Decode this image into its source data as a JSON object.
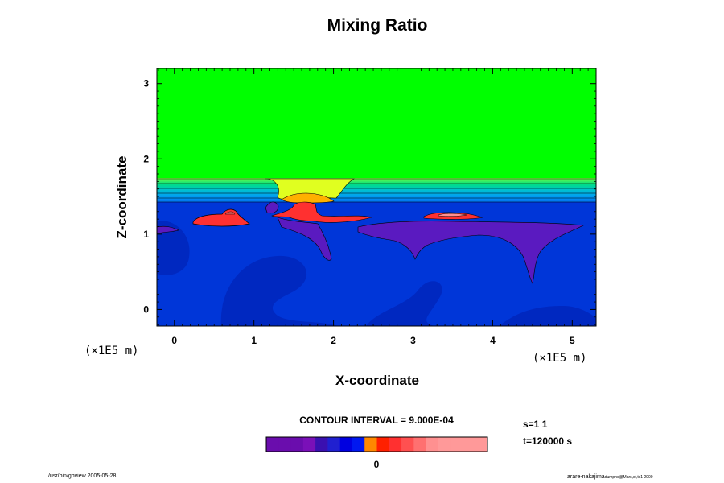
{
  "chart_data": {
    "type": "heatmap",
    "title": "Mixing Ratio",
    "xlabel": "X-coordinate",
    "ylabel": "Z-coordinate",
    "x_unit": "(×1E5 m)",
    "y_unit": "(×1E5 m)",
    "xlim": [
      -0.22,
      5.3
    ],
    "ylim": [
      -0.22,
      3.2
    ],
    "x_ticks": [
      0,
      1,
      2,
      3,
      4,
      5
    ],
    "y_ticks": [
      0,
      1,
      2,
      3
    ],
    "contour_interval": "CONTOUR INTERVAL = 9.000E-04",
    "colorbar": {
      "zero_label": "0",
      "colors": [
        "#6a0dad",
        "#6a0dad",
        "#6a0dad",
        "#7a10b8",
        "#3a10b0",
        "#2020d0",
        "#0000e0",
        "#0018f0",
        "#ff8800",
        "#ff2000",
        "#ff3030",
        "#ff5050",
        "#ff7070",
        "#ff9090",
        "#ff9999",
        "#ff9999",
        "#ff9999",
        "#ff9999"
      ]
    },
    "layer_colors": {
      "top": "#00ff00",
      "background": "#0030d0",
      "plume_top": "#ffff00",
      "plume": "#ff3030"
    },
    "info": [
      "s=1 1",
      "t=120000 s"
    ],
    "grid": false
  },
  "footer": {
    "left": "/usr/bin/gpview 2005-05-28",
    "right_main": "arare-nakajima",
    "right_sub": "dumpnc@Mars,st,tc1 2000"
  }
}
